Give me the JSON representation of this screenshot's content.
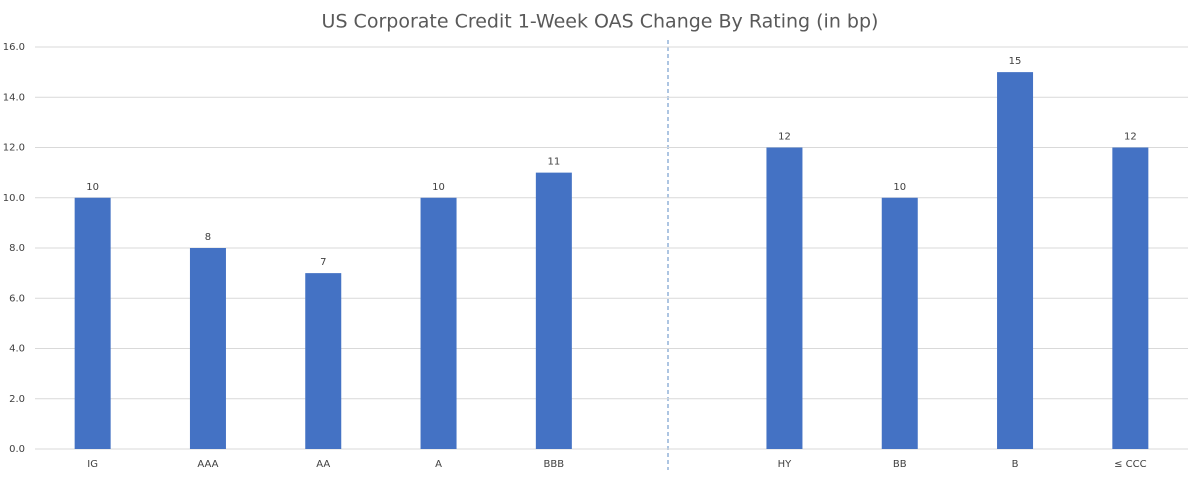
{
  "chart_data": {
    "type": "bar",
    "title": "US Corporate Credit 1-Week OAS Change By Rating (in bp)",
    "categories": [
      "IG",
      "AAA",
      "AA",
      "A",
      "BBB",
      null,
      "HY",
      "BB",
      "B",
      "≤ CCC"
    ],
    "values": [
      10,
      8,
      7,
      10,
      11,
      null,
      12,
      10,
      15,
      12
    ],
    "color": "#4472c4",
    "ylim": [
      0,
      16
    ],
    "yticks": [
      {
        "value": 0,
        "label": "0.0"
      },
      {
        "value": 2,
        "label": "2.0"
      },
      {
        "value": 4,
        "label": "4.0"
      },
      {
        "value": 6,
        "label": "6.0"
      },
      {
        "value": 8,
        "label": "8.0"
      },
      {
        "value": 10,
        "label": "10.0"
      },
      {
        "value": 12,
        "label": "12.0"
      },
      {
        "value": 14,
        "label": "14.0"
      },
      {
        "value": 16,
        "label": "16.0"
      }
    ],
    "grid": true
  }
}
